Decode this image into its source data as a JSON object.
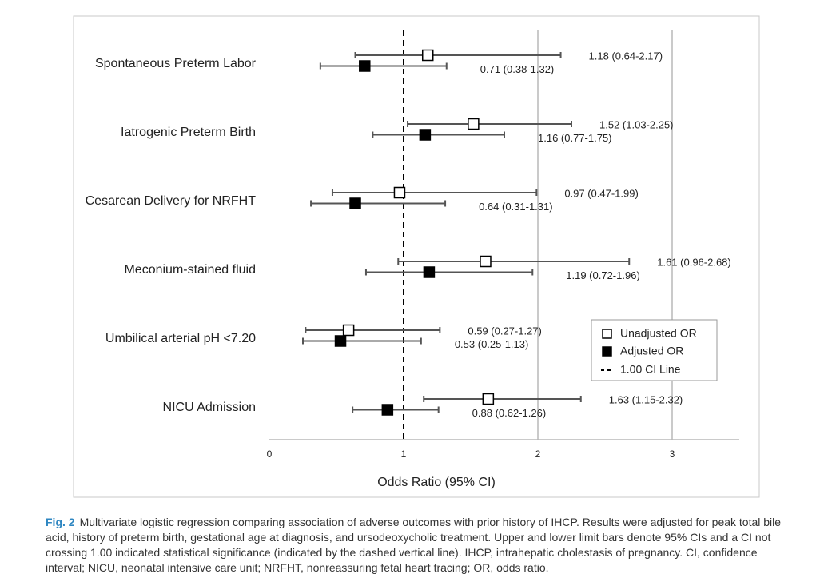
{
  "chart_data": {
    "type": "forest",
    "x_label": "Odds Ratio (95% CI)",
    "categories": [
      "Spontaneous Preterm Labor",
      "Iatrogenic Preterm Birth",
      "Cesarean Delivery for NRFHT",
      "Meconium-stained fluid",
      "Umbilical arterial pH <7.20",
      "NICU Admission"
    ],
    "series": [
      {
        "name": "Unadjusted OR",
        "color": "#ffffff",
        "values": [
          1.18,
          1.52,
          0.97,
          1.61,
          0.59,
          1.63
        ],
        "lower": [
          0.64,
          1.03,
          0.47,
          0.96,
          0.27,
          1.15
        ],
        "upper": [
          2.17,
          2.25,
          1.99,
          2.68,
          1.27,
          2.32
        ],
        "value_labels": [
          "1.18 (0.64-2.17)",
          "1.52 (1.03-2.25)",
          "0.97 (0.47-1.99)",
          "1.61 (0.96-2.68)",
          "0.59 (0.27-1.27)",
          "1.63 (1.15-2.32)"
        ]
      },
      {
        "name": "Adjusted OR",
        "color": "#000000",
        "values": [
          0.71,
          1.16,
          0.64,
          1.19,
          0.53,
          0.88
        ],
        "lower": [
          0.38,
          0.77,
          0.31,
          0.72,
          0.25,
          0.62
        ],
        "upper": [
          1.32,
          1.75,
          1.31,
          1.96,
          1.13,
          1.26
        ],
        "value_labels": [
          "0.71 (0.38-1.32)",
          "1.16 (0.77-1.75)",
          "0.64 (0.31-1.31)",
          "1.19 (0.72-1.96)",
          "0.53 (0.25-1.13)",
          "0.88 (0.62-1.26)"
        ]
      }
    ],
    "reference_line": {
      "value": 1,
      "label": "1.00 CI Line"
    },
    "xlim": [
      0,
      3.5
    ],
    "xticks": [
      0,
      1,
      2,
      3
    ],
    "grid": true,
    "legend": "right",
    "caption_label": "Fig. 2",
    "caption": "Multivariate logistic regression comparing association of adverse outcomes with prior history of IHCP. Results were adjusted for peak total bile acid, history of preterm birth, gestational age at diagnosis, and ursodeoxycholic treatment. Upper and lower limit bars denote 95% CIs and a CI not crossing 1.00 indicated statistical significance (indicated by the dashed vertical line). IHCP, intrahepatic cholestasis of pregnancy. CI, confidence interval; NICU, neonatal intensive care unit; NRFHT, nonreassuring fetal heart tracing; OR, odds ratio."
  }
}
